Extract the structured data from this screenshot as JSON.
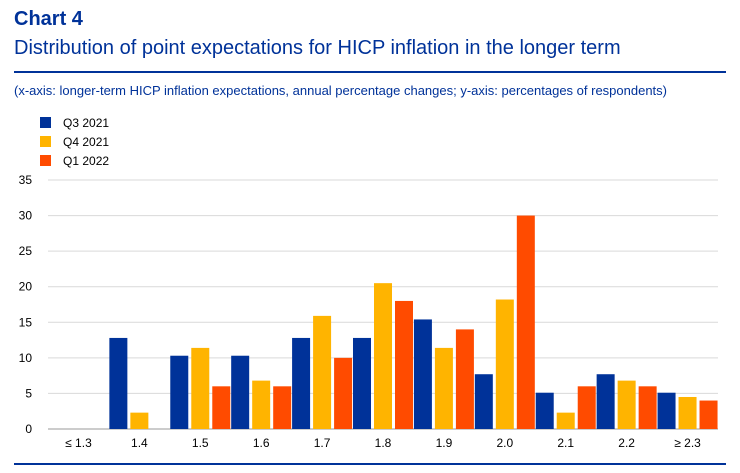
{
  "header": {
    "chart_number": "Chart 4",
    "title": "Distribution of point expectations for HICP inflation in the longer term",
    "subtitle": "(x-axis: longer-term HICP inflation expectations, annual percentage changes; y-axis: percentages of respondents)"
  },
  "legend": [
    {
      "label": "Q3 2021",
      "color": "#003299"
    },
    {
      "label": "Q4 2021",
      "color": "#FFB400"
    },
    {
      "label": "Q1 2022",
      "color": "#FF4B00"
    }
  ],
  "chart_data": {
    "type": "bar",
    "title": "Distribution of point expectations for HICP inflation in the longer term",
    "xlabel": "",
    "ylabel": "",
    "categories": [
      "≤ 1.3",
      "1.4",
      "1.5",
      "1.6",
      "1.7",
      "1.8",
      "1.9",
      "2.0",
      "2.1",
      "2.2",
      "≥ 2.3"
    ],
    "series": [
      {
        "name": "Q3 2021",
        "color": "#003299",
        "values": [
          0,
          12.8,
          10.3,
          10.3,
          12.8,
          12.8,
          15.4,
          7.7,
          5.1,
          7.7,
          5.1
        ]
      },
      {
        "name": "Q4 2021",
        "color": "#FFB400",
        "values": [
          0,
          2.3,
          11.4,
          6.8,
          15.9,
          20.5,
          11.4,
          18.2,
          2.3,
          6.8,
          4.5
        ]
      },
      {
        "name": "Q1 2022",
        "color": "#FF4B00",
        "values": [
          0,
          0,
          6.0,
          6.0,
          10.0,
          18.0,
          14.0,
          30.0,
          6.0,
          6.0,
          4.0
        ]
      }
    ],
    "yticks": [
      0,
      5,
      10,
      15,
      20,
      25,
      30,
      35
    ],
    "ylim": [
      0,
      35
    ],
    "grid": true,
    "legend_position": "top-left"
  }
}
